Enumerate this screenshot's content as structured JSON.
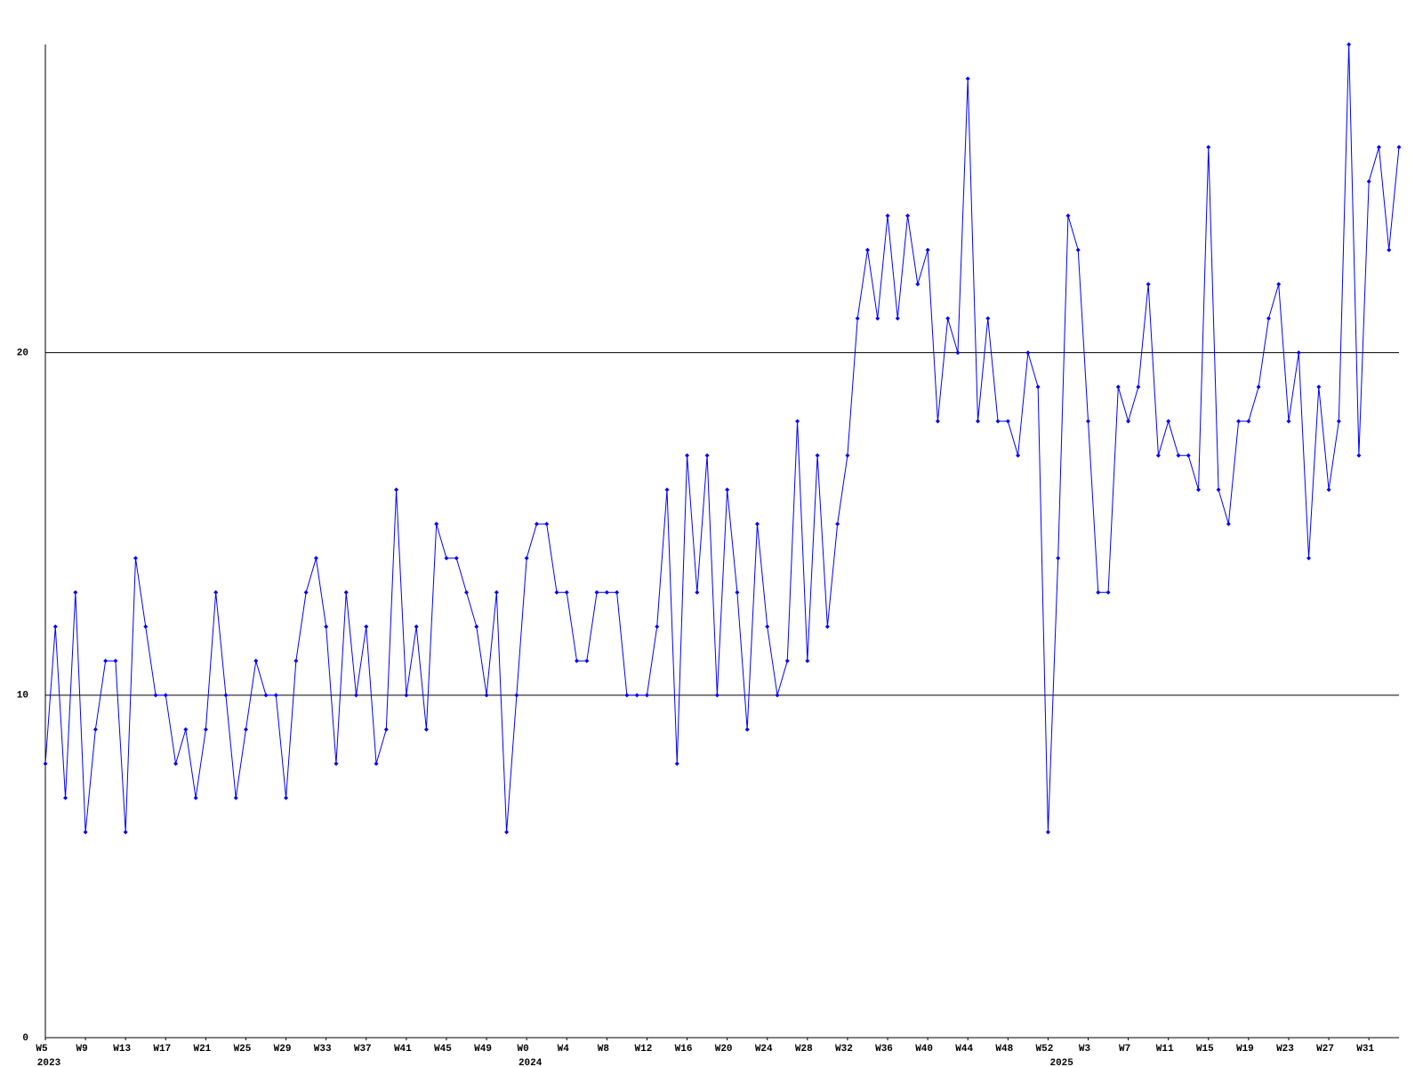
{
  "chart_data": {
    "type": "line",
    "categories": [
      "W5",
      null,
      null,
      null,
      "W9",
      null,
      null,
      null,
      "W13",
      null,
      null,
      null,
      "W17",
      null,
      null,
      null,
      "W21",
      null,
      null,
      null,
      "W25",
      null,
      null,
      null,
      "W29",
      null,
      null,
      null,
      "W33",
      null,
      null,
      null,
      "W37",
      null,
      null,
      null,
      "W41",
      null,
      null,
      null,
      "W45",
      null,
      null,
      null,
      "W49",
      null,
      null,
      null,
      "W0",
      null,
      null,
      null,
      "W4",
      null,
      null,
      null,
      "W8",
      null,
      null,
      null,
      "W12",
      null,
      null,
      null,
      "W16",
      null,
      null,
      null,
      "W20",
      null,
      null,
      null,
      "W24",
      null,
      null,
      null,
      "W28",
      null,
      null,
      null,
      "W32",
      null,
      null,
      null,
      "W36",
      null,
      null,
      null,
      "W40",
      null,
      null,
      null,
      "W44",
      null,
      null,
      null,
      "W48",
      null,
      null,
      null,
      "W52",
      null,
      null,
      null,
      "W3",
      null,
      null,
      null,
      "W7",
      null,
      null,
      null,
      "W11",
      null,
      null,
      null,
      "W15",
      null,
      null,
      null,
      "W19",
      null,
      null,
      null,
      "W23",
      null,
      null,
      null,
      "W27",
      null,
      null,
      null,
      "W31",
      null,
      null,
      null
    ],
    "years": [
      "2023",
      null,
      null,
      null,
      null,
      null,
      null,
      null,
      null,
      null,
      null,
      null,
      null,
      null,
      null,
      null,
      null,
      null,
      null,
      null,
      null,
      null,
      null,
      null,
      null,
      null,
      null,
      null,
      null,
      null,
      null,
      null,
      null,
      null,
      null,
      null,
      null,
      null,
      null,
      null,
      null,
      null,
      null,
      null,
      null,
      null,
      null,
      null,
      "2024",
      null,
      null,
      null,
      null,
      null,
      null,
      null,
      null,
      null,
      null,
      null,
      null,
      null,
      null,
      null,
      null,
      null,
      null,
      null,
      null,
      null,
      null,
      null,
      null,
      null,
      null,
      null,
      null,
      null,
      null,
      null,
      null,
      null,
      null,
      null,
      null,
      null,
      null,
      null,
      null,
      null,
      null,
      null,
      null,
      null,
      null,
      null,
      null,
      null,
      null,
      null,
      null,
      "2025",
      null,
      null,
      null,
      null,
      null,
      null,
      null,
      null,
      null,
      null,
      null,
      null,
      null,
      null,
      null,
      null,
      null,
      null,
      null,
      null,
      null,
      null,
      null,
      null,
      null,
      null,
      null,
      null,
      null,
      null,
      null,
      null,
      null,
      null
    ],
    "series": [
      {
        "color": "#0000ff",
        "values": [
          8,
          12,
          7,
          13,
          6,
          9,
          11,
          11,
          6,
          14,
          12,
          10,
          10,
          8,
          9,
          7,
          9,
          13,
          10,
          7,
          9,
          11,
          10,
          10,
          7,
          11,
          13,
          14,
          12,
          8,
          13,
          10,
          12,
          8,
          9,
          16,
          10,
          12,
          9,
          15,
          14,
          14,
          13,
          12,
          10,
          13,
          6,
          10,
          14,
          15,
          15,
          13,
          13,
          11,
          11,
          13,
          13,
          13,
          10,
          10,
          10,
          12,
          16,
          8,
          17,
          13,
          17,
          10,
          16,
          13,
          9,
          15,
          12,
          10,
          11,
          18,
          11,
          17,
          12,
          15,
          17,
          21,
          23,
          21,
          24,
          21,
          24,
          22,
          23,
          18,
          21,
          20,
          28,
          18,
          21,
          18,
          18,
          17,
          20,
          19,
          6,
          14,
          24,
          23,
          18,
          13,
          13,
          19,
          18,
          19,
          22,
          17,
          18,
          17,
          17,
          16,
          26,
          16,
          15,
          18,
          18,
          19,
          21,
          22,
          18,
          20,
          14,
          19,
          16,
          18,
          29,
          17,
          25,
          26,
          23,
          26
        ]
      }
    ],
    "ylim": [
      0,
      29
    ],
    "yticks": [
      0,
      10,
      20
    ],
    "grid": true
  }
}
